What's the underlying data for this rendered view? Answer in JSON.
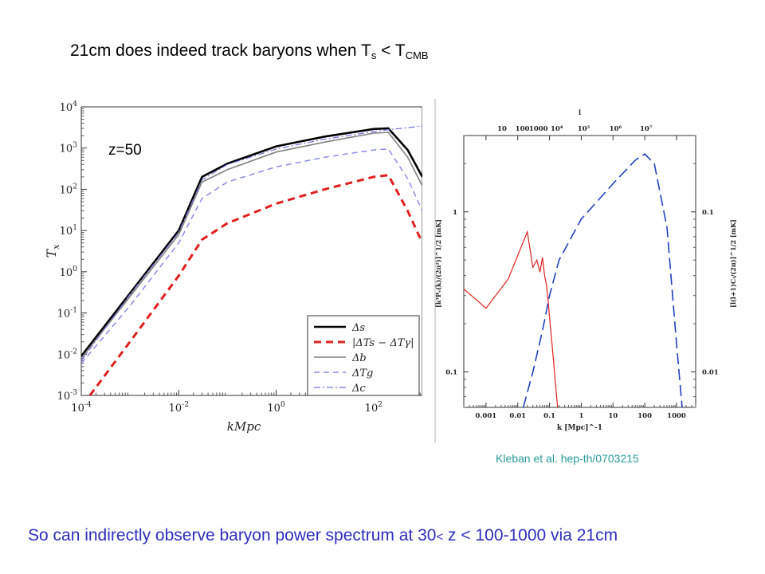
{
  "slide": {
    "title_main": "21cm does indeed track baryons when T",
    "title_sub1": "s",
    "title_mid": " < T",
    "title_sub2": "CMB",
    "caption_a": "So can indirectly observe baryon power spectrum at 30",
    "caption_lt": "<",
    "caption_b": " z < 100-1000 via 21cm",
    "citation": "Kleban et al. hep-th/0703215"
  },
  "chart_data": [
    {
      "type": "line",
      "annotation": "z=50",
      "xlabel": "kMpc",
      "ylabel": "T_x",
      "xscale": "log",
      "yscale": "log",
      "xlim": [
        0.0001,
        1000
      ],
      "ylim": [
        0.001,
        10000
      ],
      "x_ticks": [
        "10^-4",
        "10^-2",
        "10^0",
        "10^2"
      ],
      "y_ticks": [
        "10^-3",
        "10^-2",
        "10^-1",
        "10^0",
        "10^1",
        "10^2",
        "10^3",
        "10^4"
      ],
      "legend": [
        "Δs",
        "|ΔTs − ΔTγ|",
        "Δb",
        "ΔTg",
        "Δc"
      ],
      "legend_position": "bottom-right",
      "colors": [
        "#000000",
        "#e02020",
        "#808080",
        "#8a8ae8",
        "#7070e0"
      ],
      "series": [
        {
          "name": "Δs",
          "x": [
            0.0001,
            0.001,
            0.01,
            0.03,
            0.1,
            1,
            10,
            100,
            200,
            500,
            1000
          ],
          "values": [
            0.009,
            0.3,
            10,
            200,
            420,
            1100,
            1900,
            2900,
            3000,
            900,
            200
          ]
        },
        {
          "name": "|ΔTs − ΔTγ|",
          "x": [
            0.00015,
            0.001,
            0.01,
            0.03,
            0.1,
            1,
            10,
            100,
            200,
            500,
            1000
          ],
          "values": [
            0.001,
            0.02,
            0.8,
            6,
            15,
            45,
            100,
            200,
            220,
            30,
            5
          ]
        },
        {
          "name": "Δb",
          "x": [
            0.0001,
            0.001,
            0.01,
            0.03,
            0.1,
            1,
            10,
            100,
            200,
            500,
            1000
          ],
          "values": [
            0.008,
            0.25,
            8,
            150,
            300,
            800,
            1400,
            2300,
            2400,
            600,
            120
          ]
        },
        {
          "name": "ΔTg",
          "x": [
            0.0001,
            0.001,
            0.01,
            0.03,
            0.1,
            1,
            10,
            100,
            200,
            500,
            1000
          ],
          "values": [
            0.006,
            0.15,
            5,
            60,
            150,
            350,
            600,
            900,
            950,
            180,
            30
          ]
        },
        {
          "name": "Δc",
          "x": [
            0.0001,
            0.001,
            0.01,
            0.03,
            0.1,
            1,
            10,
            100,
            200,
            500,
            1000
          ],
          "values": [
            0.007,
            0.28,
            9,
            170,
            400,
            950,
            1650,
            2500,
            2800,
            3100,
            3500
          ]
        }
      ]
    },
    {
      "type": "line",
      "xlabel": "k [Mpc]^-1",
      "ylabel_left": "[k³Pₛ(k)/(2π²)]^1/2  [mK]",
      "ylabel_right": "[l(l+1)Cₗ/(2π)]^1/2  [mK]",
      "xscale": "log",
      "yscale": "log",
      "xlim": [
        0.0002,
        4000
      ],
      "ylim": [
        0.06,
        3
      ],
      "x_ticks": [
        "0.001",
        "0.01",
        "0.1",
        "1",
        "10",
        "100",
        "1000"
      ],
      "x_ticks_top": [
        "10",
        "100",
        "1000",
        "10⁴",
        "10⁵",
        "10⁶",
        "10⁷"
      ],
      "x_top_label": "l",
      "y_ticks_left": [
        "0.1",
        "1"
      ],
      "y_ticks_right": [
        "0.01",
        "0.1"
      ],
      "colors": [
        "#e02020",
        "#2040c0"
      ],
      "series": [
        {
          "name": "",
          "x": [
            0.0002,
            0.001,
            0.005,
            0.02,
            0.03,
            0.04,
            0.05,
            0.06,
            0.07,
            0.08,
            0.09,
            0.1,
            0.12,
            0.15,
            0.18
          ],
          "values": [
            0.33,
            0.25,
            0.38,
            0.75,
            0.45,
            0.5,
            0.42,
            0.52,
            0.4,
            0.35,
            0.28,
            0.22,
            0.15,
            0.09,
            0.06
          ]
        },
        {
          "name": "",
          "x": [
            0.015,
            0.03,
            0.06,
            0.1,
            0.2,
            1,
            10,
            50,
            100,
            200,
            500,
            1000,
            1500
          ],
          "values": [
            0.06,
            0.1,
            0.18,
            0.3,
            0.5,
            0.9,
            1.5,
            2.1,
            2.3,
            2.0,
            0.8,
            0.15,
            0.06
          ]
        }
      ]
    }
  ]
}
